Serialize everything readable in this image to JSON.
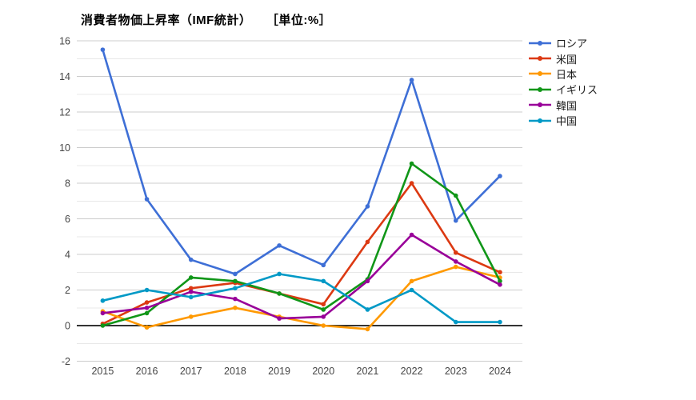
{
  "title": {
    "main": "消費者物価上昇率（IMF統計）",
    "unit": "［単位:%］"
  },
  "chart_data": {
    "type": "line",
    "title": "消費者物価上昇率（IMF統計）",
    "unit_label": "［単位:%］",
    "x": [
      "2015",
      "2016",
      "2017",
      "2018",
      "2019",
      "2020",
      "2021",
      "2022",
      "2023",
      "2024"
    ],
    "series": [
      {
        "name": "ロシア",
        "color": "#3E6FD6",
        "values": [
          15.5,
          7.1,
          3.7,
          2.9,
          4.5,
          3.4,
          6.7,
          13.8,
          5.9,
          8.4
        ]
      },
      {
        "name": "米国",
        "color": "#DC3912",
        "values": [
          0.1,
          1.3,
          2.1,
          2.4,
          1.8,
          1.2,
          4.7,
          8.0,
          4.1,
          3.0
        ]
      },
      {
        "name": "日本",
        "color": "#FF9900",
        "values": [
          0.8,
          -0.1,
          0.5,
          1.0,
          0.5,
          0.0,
          -0.2,
          2.5,
          3.3,
          2.7
        ]
      },
      {
        "name": "イギリス",
        "color": "#109618",
        "values": [
          0.0,
          0.7,
          2.7,
          2.5,
          1.8,
          0.9,
          2.6,
          9.1,
          7.3,
          2.5
        ]
      },
      {
        "name": "韓国",
        "color": "#990099",
        "values": [
          0.7,
          1.0,
          1.9,
          1.5,
          0.4,
          0.5,
          2.5,
          5.1,
          3.6,
          2.3
        ]
      },
      {
        "name": "中国",
        "color": "#0099C6",
        "values": [
          1.4,
          2.0,
          1.6,
          2.1,
          2.9,
          2.5,
          0.9,
          2.0,
          0.2,
          0.2
        ]
      }
    ],
    "ylim": [
      -2,
      16
    ],
    "ytick_step": 2,
    "yticks": [
      16,
      14,
      12,
      10,
      8,
      6,
      4,
      2,
      0,
      -2
    ],
    "baseline": 0,
    "grid": true,
    "legend_position": "right",
    "colors": {
      "grid_major": "#cccccc",
      "grid_minor": "#e8e8e8",
      "baseline_axis": "#333333",
      "tick_label": "#444444",
      "title_text": "#000000",
      "background": "#ffffff"
    }
  }
}
